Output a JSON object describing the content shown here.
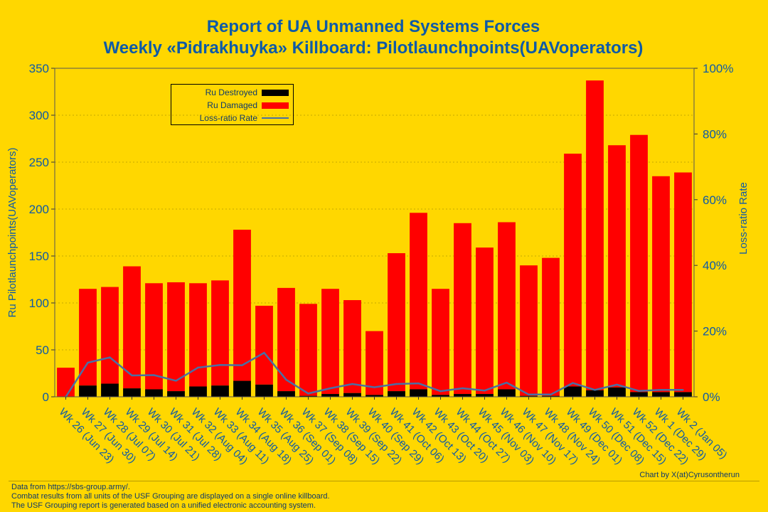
{
  "title": {
    "line1": "Report of UA Unmanned Systems Forces",
    "line2": "Weekly «Pidrakhuyka» Killboard: Pilotlaunchpoints(UAVoperators)"
  },
  "footer": {
    "line1": "Data from https://sbs-group.army/.",
    "line2": "Combat results from all units of the USF Grouping are displayed on a single online killboard.",
    "line3": "The USF Grouping report is generated based on a unified electronic accounting system.",
    "credit": "Chart by X(at)Cyrusontherun"
  },
  "colors": {
    "background": "#FFD700",
    "destroyed": "#000000",
    "damaged": "#FF0000",
    "line": "#4A6FA5",
    "text": "#0E5AA7"
  },
  "chart_data": {
    "type": "bar",
    "stacked": true,
    "ylabel": "Ru Pilotlaunchpoints(UAVoperators)",
    "y2label": "Loss-ratio Rate",
    "ylim": [
      0,
      350
    ],
    "yticks": [
      0,
      50,
      100,
      150,
      200,
      250,
      300,
      350
    ],
    "y2lim": [
      0,
      100
    ],
    "y2ticks": [
      "0%",
      "20%",
      "40%",
      "60%",
      "80%",
      "100%"
    ],
    "grid": true,
    "legend_position": "top-left",
    "categories": [
      "Wk 26 (Jun 23)",
      "Wk 27 (Jun 30)",
      "Wk 28 (Jul 07)",
      "Wk 29 (Jul 14)",
      "Wk 30 (Jul 21)",
      "Wk 31 (Jul 28)",
      "Wk 32 (Aug 04)",
      "Wk 33 (Aug 11)",
      "Wk 34 (Aug 18)",
      "Wk 35 (Aug 25)",
      "Wk 36 (Sep 01)",
      "Wk 37 (Sep 08)",
      "Wk 38 (Sep 15)",
      "Wk 39 (Sep 22)",
      "Wk 40 (Sep 29)",
      "Wk 41 (Oct 06)",
      "Wk 42 (Oct 13)",
      "Wk 43 (Oct 20)",
      "Wk 44 (Oct 27)",
      "Wk 45 (Nov 03)",
      "Wk 46 (Nov 10)",
      "Wk 47 (Nov 17)",
      "Wk 48 (Nov 24)",
      "Wk 49 (Dec 01)",
      "Wk 50 (Dec 08)",
      "Wk 51 (Dec 15)",
      "Wk 52 (Dec 22)",
      "Wk 1 (Dec 29)",
      "Wk 2 (Jan 05)"
    ],
    "series": [
      {
        "name": "Ru Destroyed",
        "values": [
          0,
          12,
          14,
          9,
          8,
          6,
          11,
          12,
          17,
          13,
          6,
          1,
          3,
          4,
          2,
          6,
          8,
          2,
          3,
          3,
          8,
          1,
          1,
          11,
          7,
          10,
          5,
          5,
          5
        ]
      },
      {
        "name": "Ru Damaged",
        "values": [
          31,
          103,
          103,
          130,
          113,
          116,
          110,
          112,
          161,
          84,
          110,
          98,
          112,
          99,
          68,
          147,
          188,
          113,
          182,
          156,
          178,
          139,
          147,
          248,
          330,
          258,
          274,
          230,
          234
        ]
      },
      {
        "name": "Loss-ratio Rate",
        "axis": "right",
        "values": [
          0,
          10.4,
          12.0,
          6.5,
          6.6,
          4.9,
          8.9,
          9.7,
          9.6,
          13.4,
          5.2,
          1.0,
          2.6,
          3.9,
          2.9,
          3.9,
          4.1,
          1.7,
          2.6,
          1.9,
          4.3,
          0.7,
          0.7,
          4.2,
          2.1,
          3.7,
          1.8,
          2.1,
          2.1
        ]
      }
    ]
  }
}
